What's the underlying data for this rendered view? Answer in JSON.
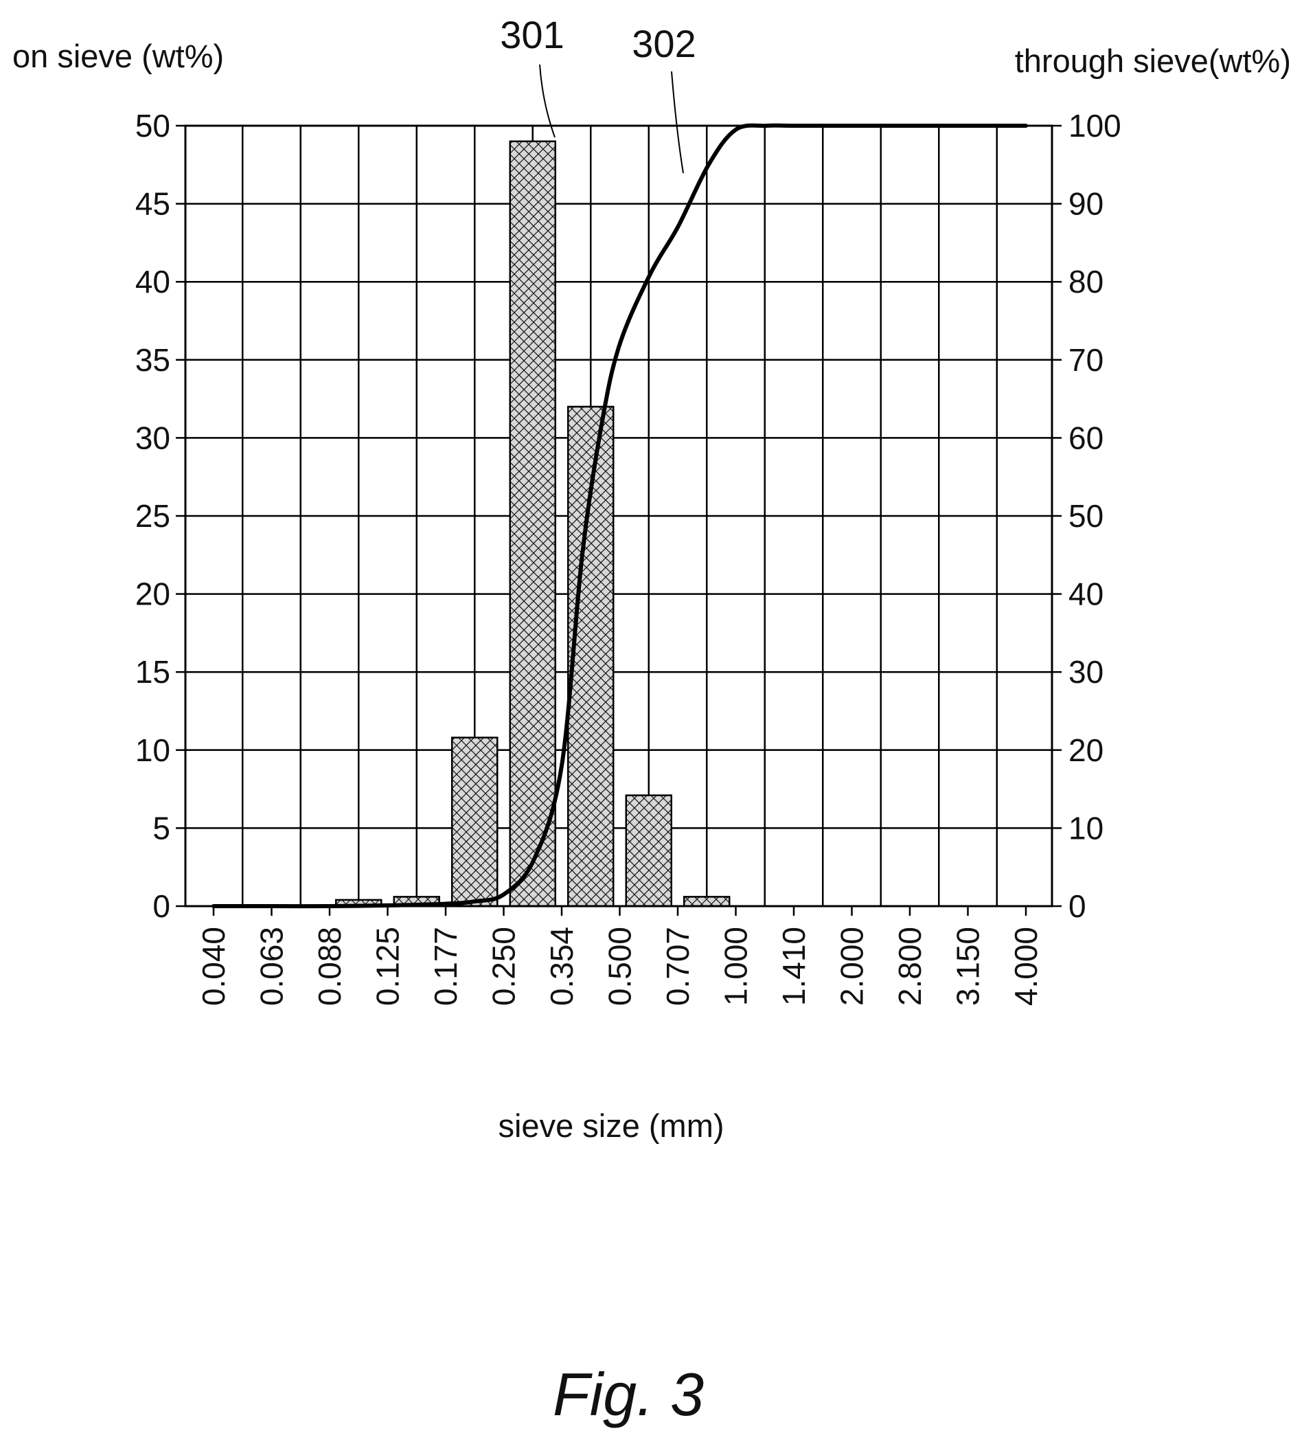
{
  "chart_data": {
    "type": "bar",
    "title": "",
    "caption": "Fig. 3",
    "xlabel": "sieve size (mm)",
    "ylabel_left": "on sieve (wt%)",
    "ylabel_right": "through sieve(wt%)",
    "ylim_left": [
      0,
      50
    ],
    "ylim_right": [
      0,
      100
    ],
    "yticks_left": [
      "0",
      "5",
      "10",
      "15",
      "20",
      "25",
      "30",
      "35",
      "40",
      "45",
      "50"
    ],
    "yticks_right": [
      "0",
      "10",
      "20",
      "30",
      "40",
      "50",
      "60",
      "70",
      "80",
      "90",
      "100"
    ],
    "grid": true,
    "categories": [
      "0.040",
      "0.063",
      "0.088",
      "0.125",
      "0.177",
      "0.250",
      "0.354",
      "0.500",
      "0.707",
      "1.000",
      "1.410",
      "2.000",
      "2.800",
      "3.150",
      "4.000"
    ],
    "series": [
      {
        "name": "301",
        "type": "bar",
        "axis": "left",
        "pattern": "crosshatch",
        "x": [
          "0.125",
          "0.177",
          "0.250",
          "0.354",
          "0.500",
          "0.707",
          "1.000"
        ],
        "values": [
          0.4,
          0.6,
          10.8,
          49,
          32,
          7.1,
          0.6
        ]
      },
      {
        "name": "302",
        "type": "line",
        "axis": "right",
        "x": [
          0.04,
          0.063,
          0.088,
          0.125,
          0.177,
          0.21,
          0.25,
          0.3,
          0.354,
          0.4,
          0.45,
          0.5,
          0.6,
          0.707,
          0.85,
          1.0,
          1.2,
          1.41,
          2.0,
          2.8,
          3.15,
          4.0
        ],
        "values": [
          0,
          0,
          0,
          0.1,
          0.3,
          0.6,
          1.5,
          6,
          18,
          45,
          62,
          72,
          81,
          87,
          95,
          99.5,
          100,
          100,
          100,
          100,
          100,
          100
        ]
      }
    ]
  }
}
